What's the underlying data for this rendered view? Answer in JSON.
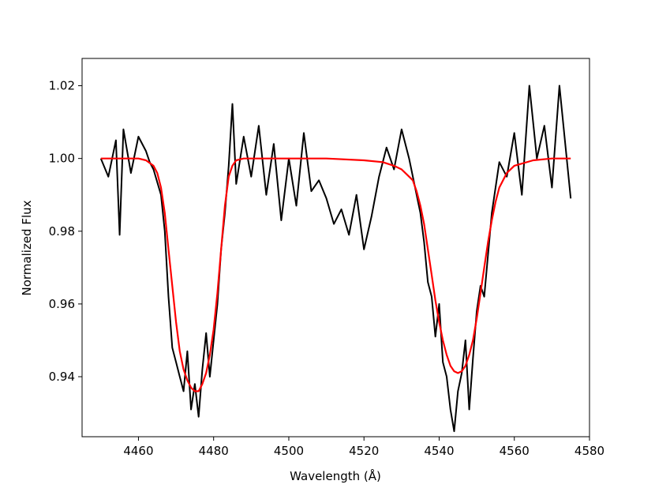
{
  "chart_data": {
    "type": "line",
    "title": "",
    "xlabel": "Wavelength (Å)",
    "ylabel": "Normalized Flux",
    "xlim": [
      4445,
      4580
    ],
    "ylim": [
      0.9235,
      1.0275
    ],
    "x_ticks": [
      4460,
      4480,
      4500,
      4520,
      4540,
      4560,
      4580
    ],
    "y_ticks": [
      0.94,
      0.96,
      0.98,
      1.0,
      1.02
    ],
    "x_tick_labels": [
      "4460",
      "4480",
      "4500",
      "4520",
      "4540",
      "4560",
      "4580"
    ],
    "y_tick_labels": [
      "0.94",
      "0.96",
      "0.98",
      "1.00",
      "1.02"
    ],
    "grid": false,
    "legend": "none",
    "series": [
      {
        "kind": "observed",
        "color": "#000000",
        "x": [
          4450,
          4452,
          4454,
          4455,
          4456,
          4458,
          4460,
          4462,
          4463,
          4464,
          4466,
          4467,
          4468,
          4469,
          4470,
          4471,
          4472,
          4473,
          4474,
          4475,
          4476,
          4477,
          4478,
          4479,
          4480,
          4481,
          4482,
          4483,
          4484,
          4485,
          4486,
          4488,
          4490,
          4492,
          4494,
          4496,
          4498,
          4500,
          4502,
          4504,
          4506,
          4508,
          4510,
          4512,
          4514,
          4516,
          4518,
          4520,
          4522,
          4524,
          4526,
          4528,
          4530,
          4532,
          4534,
          4535,
          4536,
          4537,
          4538,
          4539,
          4540,
          4541,
          4542,
          4543,
          4544,
          4545,
          4546,
          4547,
          4548,
          4549,
          4550,
          4551,
          4552,
          4554,
          4556,
          4558,
          4560,
          4562,
          4564,
          4566,
          4568,
          4570,
          4572,
          4575
        ],
        "y": [
          1.0,
          0.995,
          1.005,
          0.979,
          1.008,
          0.996,
          1.006,
          1.002,
          0.999,
          0.997,
          0.99,
          0.98,
          0.962,
          0.948,
          0.944,
          0.94,
          0.936,
          0.947,
          0.931,
          0.938,
          0.929,
          0.942,
          0.952,
          0.94,
          0.95,
          0.96,
          0.975,
          0.985,
          0.998,
          1.015,
          0.993,
          1.006,
          0.995,
          1.009,
          0.99,
          1.004,
          0.983,
          1.0,
          0.987,
          1.007,
          0.991,
          0.994,
          0.989,
          0.982,
          0.986,
          0.979,
          0.99,
          0.975,
          0.984,
          0.995,
          1.003,
          0.997,
          1.008,
          1.0,
          0.99,
          0.985,
          0.977,
          0.966,
          0.962,
          0.951,
          0.96,
          0.944,
          0.94,
          0.931,
          0.925,
          0.936,
          0.941,
          0.95,
          0.931,
          0.945,
          0.958,
          0.965,
          0.962,
          0.985,
          0.999,
          0.995,
          1.007,
          0.99,
          1.02,
          1.0,
          1.009,
          0.992,
          1.02,
          0.989
        ]
      },
      {
        "kind": "model",
        "color": "#ff0000",
        "x": [
          4450,
          4455,
          4460,
          4462,
          4464,
          4465,
          4466,
          4467,
          4468,
          4469,
          4470,
          4471,
          4472,
          4473,
          4474,
          4475,
          4476,
          4477,
          4478,
          4479,
          4480,
          4481,
          4482,
          4483,
          4484,
          4485,
          4486,
          4488,
          4490,
          4500,
          4510,
          4520,
          4525,
          4528,
          4530,
          4532,
          4533,
          4534,
          4535,
          4536,
          4537,
          4538,
          4539,
          4540,
          4541,
          4542,
          4543,
          4544,
          4545,
          4546,
          4547,
          4548,
          4549,
          4550,
          4551,
          4552,
          4553,
          4554,
          4555,
          4556,
          4558,
          4560,
          4565,
          4570,
          4575
        ],
        "y": [
          1.0,
          1.0,
          1.0,
          0.9995,
          0.998,
          0.996,
          0.992,
          0.985,
          0.975,
          0.965,
          0.955,
          0.947,
          0.942,
          0.939,
          0.937,
          0.936,
          0.936,
          0.938,
          0.941,
          0.946,
          0.953,
          0.963,
          0.975,
          0.987,
          0.995,
          0.998,
          0.9995,
          1.0,
          1.0,
          1.0,
          1.0,
          0.9995,
          0.999,
          0.998,
          0.997,
          0.995,
          0.994,
          0.991,
          0.987,
          0.982,
          0.975,
          0.968,
          0.961,
          0.955,
          0.95,
          0.946,
          0.943,
          0.9415,
          0.941,
          0.9415,
          0.943,
          0.946,
          0.95,
          0.956,
          0.963,
          0.97,
          0.977,
          0.983,
          0.988,
          0.992,
          0.996,
          0.998,
          0.9995,
          1.0,
          1.0
        ]
      }
    ]
  }
}
